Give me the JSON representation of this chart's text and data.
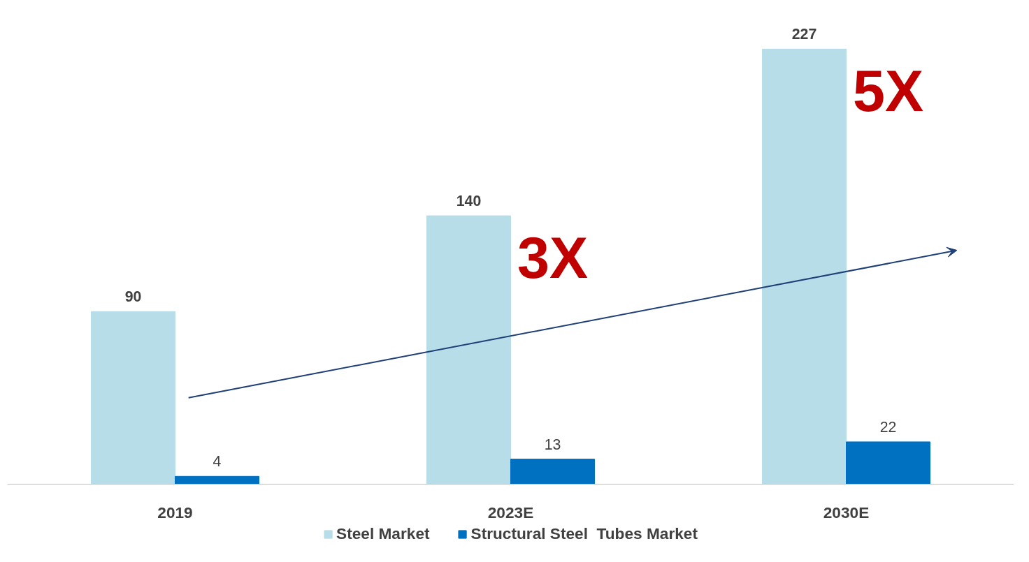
{
  "chart_data": {
    "type": "bar",
    "categories": [
      "2019",
      "2023E",
      "2030E"
    ],
    "series": [
      {
        "name": "Steel Market",
        "color": "#b7dde8",
        "values": [
          90,
          140,
          227
        ]
      },
      {
        "name": "Structural Steel  Tubes Market",
        "color": "#0070c0",
        "values": [
          4,
          13,
          22
        ]
      }
    ],
    "tick_labels": "x",
    "data_labels": true,
    "grid": false,
    "legend": "bottom",
    "annotations": [
      "3X",
      "5X"
    ]
  }
}
